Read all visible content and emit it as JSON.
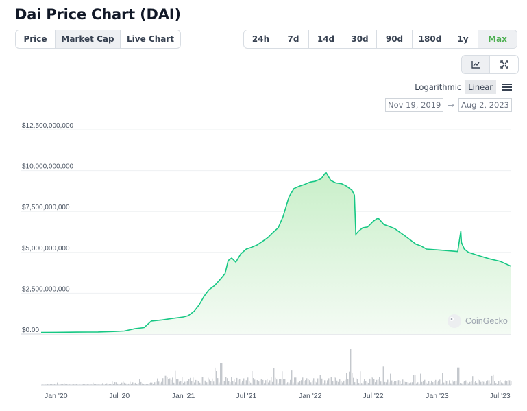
{
  "title": "Dai Price Chart (DAI)",
  "chart_type_tabs": [
    {
      "label": "Price",
      "active": false
    },
    {
      "label": "Market Cap",
      "active": true
    },
    {
      "label": "Live Chart",
      "active": false
    }
  ],
  "range_tabs": [
    {
      "label": "24h",
      "active": false
    },
    {
      "label": "7d",
      "active": false
    },
    {
      "label": "14d",
      "active": false
    },
    {
      "label": "30d",
      "active": false
    },
    {
      "label": "90d",
      "active": false
    },
    {
      "label": "180d",
      "active": false
    },
    {
      "label": "1y",
      "active": false
    },
    {
      "label": "Max",
      "active": true
    }
  ],
  "view_icons": [
    {
      "icon": "line-chart-icon",
      "active": true
    },
    {
      "icon": "fullscreen-icon",
      "active": false
    }
  ],
  "scale": {
    "logarithmic_label": "Logarithmic",
    "linear_label": "Linear",
    "selected": "Linear",
    "menu_icon": "hamburger-menu-icon"
  },
  "date_range": {
    "from": "Nov 19, 2019",
    "arrow": "→",
    "to": "Aug 2, 2023"
  },
  "watermark": "CoinGecko",
  "colors": {
    "line": "#16c784",
    "fill_top": "#c9efc9",
    "fill_bottom": "#f4fbf4",
    "volume": "#c4c8cd",
    "accent": "#4caf50"
  },
  "chart_data": {
    "type": "area",
    "title": "",
    "xlabel": "",
    "ylabel": "",
    "y_ticks": [
      "$0.00",
      "$2,500,000,000",
      "$5,000,000,000",
      "$7,500,000,000",
      "$10,000,000,000",
      "$12,500,000,000"
    ],
    "ylim": [
      0,
      12500000000
    ],
    "x_ticks": [
      "Jan '20",
      "Jul '20",
      "Jan '21",
      "Jul '21",
      "Jan '22",
      "Jul '22",
      "Jan '23",
      "Jul '23"
    ],
    "xlim": [
      "2019-11-19",
      "2023-08-02"
    ],
    "grid": true,
    "series": [
      {
        "x": [
          "2019-11-19",
          "2020-01-01",
          "2020-03-01",
          "2020-05-01",
          "2020-06-15",
          "2020-07-15",
          "2020-08-15",
          "2020-09-10",
          "2020-10-01",
          "2020-11-01",
          "2020-12-01",
          "2021-01-01",
          "2021-01-15",
          "2021-02-01",
          "2021-02-15",
          "2021-03-01",
          "2021-03-15",
          "2021-04-01",
          "2021-04-15",
          "2021-05-01",
          "2021-05-10",
          "2021-05-20",
          "2021-06-01",
          "2021-06-15",
          "2021-07-01",
          "2021-07-15",
          "2021-08-01",
          "2021-08-15",
          "2021-09-01",
          "2021-09-15",
          "2021-10-01",
          "2021-10-15",
          "2021-11-01",
          "2021-11-15",
          "2021-12-01",
          "2021-12-15",
          "2022-01-01",
          "2022-01-15",
          "2022-02-01",
          "2022-02-15",
          "2022-03-01",
          "2022-03-15",
          "2022-04-01",
          "2022-04-15",
          "2022-05-01",
          "2022-05-08",
          "2022-05-12",
          "2022-05-20",
          "2022-06-01",
          "2022-06-15",
          "2022-07-01",
          "2022-07-15",
          "2022-08-01",
          "2022-08-15",
          "2022-09-01",
          "2022-10-01",
          "2022-11-01",
          "2022-11-15",
          "2022-12-01",
          "2023-01-01",
          "2023-02-01",
          "2023-03-01",
          "2023-03-10",
          "2023-03-12",
          "2023-03-20",
          "2023-04-01",
          "2023-05-01",
          "2023-06-01",
          "2023-07-01",
          "2023-08-02"
        ],
        "values": [
          100000000,
          110000000,
          120000000,
          130000000,
          160000000,
          190000000,
          330000000,
          400000000,
          800000000,
          870000000,
          960000000,
          1050000000,
          1130000000,
          1400000000,
          1780000000,
          2300000000,
          2700000000,
          2970000000,
          3300000000,
          3700000000,
          4500000000,
          4650000000,
          4400000000,
          4900000000,
          5200000000,
          5300000000,
          5450000000,
          5650000000,
          5900000000,
          6200000000,
          6500000000,
          7200000000,
          8400000000,
          8900000000,
          9050000000,
          9150000000,
          9300000000,
          9350000000,
          9500000000,
          9900000000,
          9400000000,
          9250000000,
          9200000000,
          9050000000,
          8800000000,
          8500000000,
          6100000000,
          6300000000,
          6500000000,
          6550000000,
          6900000000,
          7100000000,
          6700000000,
          6600000000,
          6450000000,
          6000000000,
          5500000000,
          5400000000,
          5200000000,
          5150000000,
          5100000000,
          5050000000,
          6300000000,
          5600000000,
          5200000000,
          5000000000,
          4800000000,
          4600000000,
          4450000000,
          4150000000
        ]
      }
    ]
  }
}
